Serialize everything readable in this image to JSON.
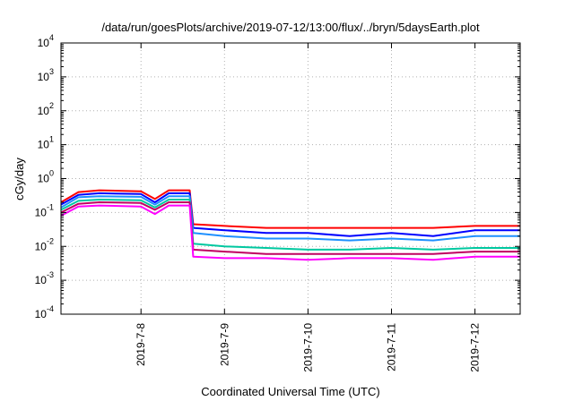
{
  "chart_data": {
    "type": "line",
    "title": "/data/run/goesPlots/archive/2019-07-12/13:00/flux/../bryn/5daysEarth.plot",
    "xlabel": "Coordinated Universal Time (UTC)",
    "ylabel": "cGy/day",
    "yscale": "log",
    "ylim": [
      0.0001,
      10000
    ],
    "xlim": [
      "2019-07-07T01:00",
      "2019-07-12T13:00"
    ],
    "grid": true,
    "x_ticks": [
      {
        "date": "2019-07-08T00:00",
        "label": "2019-7-8"
      },
      {
        "date": "2019-07-09T00:00",
        "label": "2019-7-9"
      },
      {
        "date": "2019-07-10T00:00",
        "label": "2019-7-10"
      },
      {
        "date": "2019-07-11T00:00",
        "label": "2019-7-11"
      },
      {
        "date": "2019-07-12T00:00",
        "label": "2019-7-12"
      }
    ],
    "y_ticks": [
      {
        "value": 0.0001,
        "base": "10",
        "exp": "-4"
      },
      {
        "value": 0.001,
        "base": "10",
        "exp": "-3"
      },
      {
        "value": 0.01,
        "base": "10",
        "exp": "-2"
      },
      {
        "value": 0.1,
        "base": "10",
        "exp": "-1"
      },
      {
        "value": 1,
        "base": "10",
        "exp": "0"
      },
      {
        "value": 10,
        "base": "10",
        "exp": "1"
      },
      {
        "value": 100,
        "base": "10",
        "exp": "2"
      },
      {
        "value": 1000,
        "base": "10",
        "exp": "3"
      },
      {
        "value": 10000,
        "base": "10",
        "exp": "4"
      }
    ],
    "series": [
      {
        "color": "#ff0000",
        "x": [
          "2019-07-07T01:00",
          "2019-07-07T06:00",
          "2019-07-07T12:00",
          "2019-07-08T00:00",
          "2019-07-08T04:00",
          "2019-07-08T08:00",
          "2019-07-08T14:00",
          "2019-07-08T15:00",
          "2019-07-09T00:00",
          "2019-07-09T12:00",
          "2019-07-10T00:00",
          "2019-07-10T12:00",
          "2019-07-11T00:00",
          "2019-07-11T12:00",
          "2019-07-12T00:00",
          "2019-07-12T13:00"
        ],
        "y": [
          0.2,
          0.4,
          0.45,
          0.42,
          0.25,
          0.45,
          0.45,
          0.045,
          0.04,
          0.035,
          0.035,
          0.035,
          0.035,
          0.035,
          0.04,
          0.04
        ]
      },
      {
        "color": "#0000ff",
        "x": [
          "2019-07-07T01:00",
          "2019-07-07T06:00",
          "2019-07-07T12:00",
          "2019-07-08T00:00",
          "2019-07-08T04:00",
          "2019-07-08T08:00",
          "2019-07-08T14:00",
          "2019-07-08T15:00",
          "2019-07-09T00:00",
          "2019-07-09T12:00",
          "2019-07-10T00:00",
          "2019-07-10T12:00",
          "2019-07-11T00:00",
          "2019-07-11T12:00",
          "2019-07-12T00:00",
          "2019-07-12T13:00"
        ],
        "y": [
          0.17,
          0.33,
          0.37,
          0.35,
          0.2,
          0.37,
          0.37,
          0.035,
          0.03,
          0.025,
          0.025,
          0.02,
          0.025,
          0.02,
          0.03,
          0.03
        ]
      },
      {
        "color": "#1e90ff",
        "x": [
          "2019-07-07T01:00",
          "2019-07-07T06:00",
          "2019-07-07T12:00",
          "2019-07-08T00:00",
          "2019-07-08T04:00",
          "2019-07-08T08:00",
          "2019-07-08T14:00",
          "2019-07-08T15:00",
          "2019-07-09T00:00",
          "2019-07-09T12:00",
          "2019-07-10T00:00",
          "2019-07-10T12:00",
          "2019-07-11T00:00",
          "2019-07-11T12:00",
          "2019-07-12T00:00",
          "2019-07-12T13:00"
        ],
        "y": [
          0.14,
          0.28,
          0.3,
          0.29,
          0.17,
          0.3,
          0.3,
          0.025,
          0.02,
          0.017,
          0.017,
          0.015,
          0.017,
          0.015,
          0.02,
          0.02
        ]
      },
      {
        "color": "#00c8a0",
        "x": [
          "2019-07-07T01:00",
          "2019-07-07T06:00",
          "2019-07-07T12:00",
          "2019-07-08T00:00",
          "2019-07-08T04:00",
          "2019-07-08T08:00",
          "2019-07-08T14:00",
          "2019-07-08T15:00",
          "2019-07-09T00:00",
          "2019-07-09T12:00",
          "2019-07-10T00:00",
          "2019-07-10T12:00",
          "2019-07-11T00:00",
          "2019-07-11T12:00",
          "2019-07-12T00:00",
          "2019-07-12T13:00"
        ],
        "y": [
          0.12,
          0.22,
          0.24,
          0.23,
          0.14,
          0.24,
          0.24,
          0.012,
          0.01,
          0.009,
          0.008,
          0.008,
          0.009,
          0.008,
          0.009,
          0.009
        ]
      },
      {
        "color": "#c00060",
        "x": [
          "2019-07-07T01:00",
          "2019-07-07T06:00",
          "2019-07-07T12:00",
          "2019-07-08T00:00",
          "2019-07-08T04:00",
          "2019-07-08T08:00",
          "2019-07-08T14:00",
          "2019-07-08T15:00",
          "2019-07-09T00:00",
          "2019-07-09T12:00",
          "2019-07-10T00:00",
          "2019-07-10T12:00",
          "2019-07-11T00:00",
          "2019-07-11T12:00",
          "2019-07-12T00:00",
          "2019-07-12T13:00"
        ],
        "y": [
          0.1,
          0.18,
          0.2,
          0.19,
          0.12,
          0.2,
          0.2,
          0.008,
          0.007,
          0.006,
          0.006,
          0.006,
          0.006,
          0.006,
          0.007,
          0.007
        ]
      },
      {
        "color": "#ff00ff",
        "x": [
          "2019-07-07T01:00",
          "2019-07-07T06:00",
          "2019-07-07T12:00",
          "2019-07-08T00:00",
          "2019-07-08T04:00",
          "2019-07-08T08:00",
          "2019-07-08T14:00",
          "2019-07-08T15:00",
          "2019-07-09T00:00",
          "2019-07-09T12:00",
          "2019-07-10T00:00",
          "2019-07-10T12:00",
          "2019-07-11T00:00",
          "2019-07-11T12:00",
          "2019-07-12T00:00",
          "2019-07-12T13:00"
        ],
        "y": [
          0.08,
          0.15,
          0.16,
          0.15,
          0.09,
          0.16,
          0.16,
          0.005,
          0.0045,
          0.0045,
          0.004,
          0.0045,
          0.0045,
          0.004,
          0.005,
          0.005
        ]
      }
    ]
  }
}
